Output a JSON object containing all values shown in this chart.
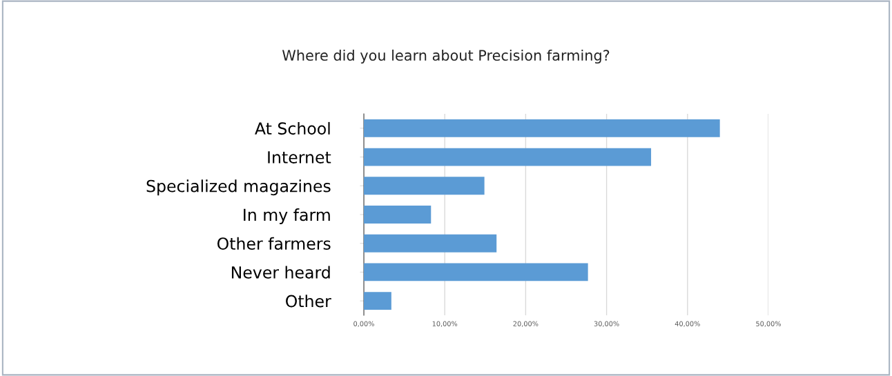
{
  "chart_data": {
    "type": "bar",
    "orientation": "horizontal",
    "title": "Where did you learn about Precision farming?",
    "categories": [
      "At School",
      "Internet",
      "Specialized magazines",
      "In my farm",
      "Other farmers",
      "Never heard",
      "Other"
    ],
    "values": [
      44,
      35.5,
      14.9,
      8.3,
      16.4,
      27.7,
      3.4
    ],
    "color": "#5b9bd5",
    "xlim": [
      0,
      50
    ],
    "xticks": [
      {
        "value": 0,
        "label": "0,00%"
      },
      {
        "value": 10,
        "label": "10,00%"
      },
      {
        "value": 20,
        "label": "20,00%"
      },
      {
        "value": 30,
        "label": "30,00%"
      },
      {
        "value": 40,
        "label": "40,00%"
      },
      {
        "value": 50,
        "label": "50,00%"
      }
    ],
    "grid": "x",
    "legend": false
  }
}
